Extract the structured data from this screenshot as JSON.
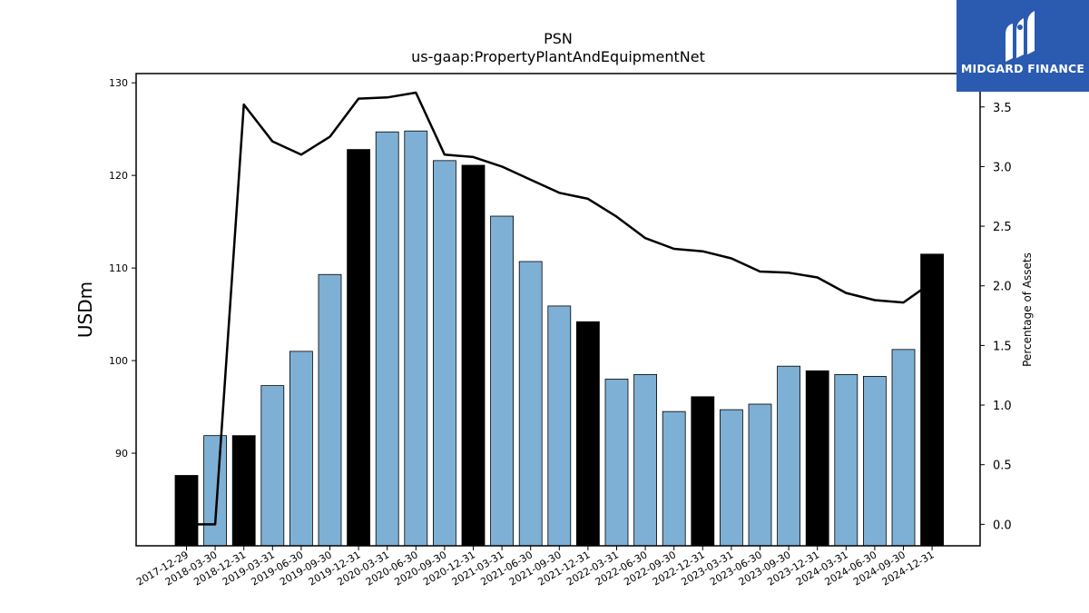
{
  "brand": {
    "name": "MIDGARD FINANCE",
    "background_color": "#2a5bb0",
    "mark_icon": "midgard-logo-icon"
  },
  "chart_data": {
    "type": "bar",
    "title": "PSN",
    "subtitle": "us-gaap:PropertyPlantAndEquipmentNet",
    "xlabel": "",
    "ylabel": "USDm",
    "y2label": "Percentage of Assets",
    "categories": [
      "2017-12-29",
      "2018-03-30",
      "2018-12-31",
      "2019-03-31",
      "2019-06-30",
      "2019-09-30",
      "2019-12-31",
      "2020-03-31",
      "2020-06-30",
      "2020-09-30",
      "2020-12-31",
      "2021-03-31",
      "2021-06-30",
      "2021-09-30",
      "2021-12-31",
      "2022-03-31",
      "2022-06-30",
      "2022-09-30",
      "2022-12-31",
      "2023-03-31",
      "2023-06-30",
      "2023-09-30",
      "2023-12-31",
      "2024-03-31",
      "2024-06-30",
      "2024-09-30",
      "2024-12-31"
    ],
    "ylim": [
      80,
      131
    ],
    "yticks": [
      90,
      100,
      110,
      120,
      130
    ],
    "y2lim": [
      -0.18,
      3.78
    ],
    "y2ticks": [
      "0.0",
      "0.5",
      "1.0",
      "1.5",
      "2.0",
      "2.5",
      "3.0",
      "3.5"
    ],
    "series": [
      {
        "type": "bar",
        "values": [
          87.6,
          91.9,
          91.9,
          97.3,
          101.0,
          109.3,
          122.8,
          124.7,
          124.8,
          121.6,
          121.1,
          115.6,
          110.7,
          105.9,
          104.2,
          98.0,
          98.5,
          94.5,
          96.1,
          94.7,
          95.3,
          99.4,
          98.9,
          98.5,
          98.3,
          101.2,
          111.5
        ],
        "highlight": [
          true,
          false,
          true,
          false,
          false,
          false,
          true,
          false,
          false,
          false,
          true,
          false,
          false,
          false,
          true,
          false,
          false,
          false,
          true,
          false,
          false,
          false,
          true,
          false,
          false,
          false,
          true
        ],
        "color": "#7eb0d5",
        "highlight_color": "#000000"
      },
      {
        "type": "line",
        "axis": "right",
        "values": [
          0.0,
          0.0,
          3.52,
          3.21,
          3.1,
          3.25,
          3.57,
          3.58,
          3.62,
          3.1,
          3.08,
          3.0,
          2.89,
          2.78,
          2.73,
          2.58,
          2.4,
          2.31,
          2.29,
          2.23,
          2.12,
          2.11,
          2.07,
          1.94,
          1.88,
          1.86,
          2.03
        ],
        "color": "#000000"
      }
    ]
  }
}
